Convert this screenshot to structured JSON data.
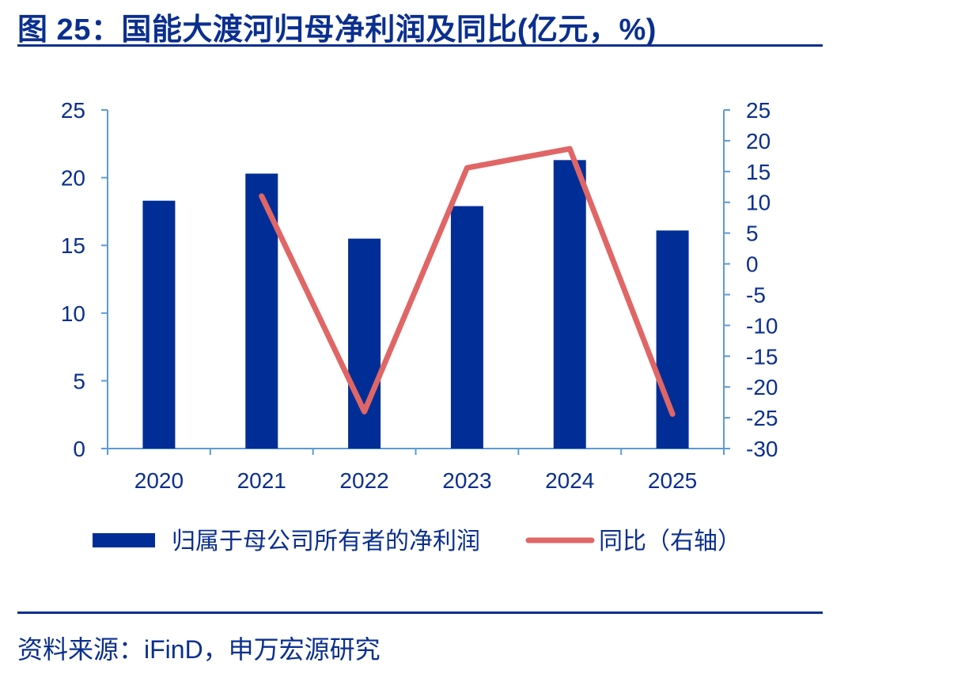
{
  "header": {
    "title": "图 25：国能大渡河归母净利润及同比(亿元，%)"
  },
  "footer": {
    "source": "资料来源：iFinD，申万宏源研究"
  },
  "chart_data": {
    "type": "bar",
    "categories": [
      "2020",
      "2021",
      "2022",
      "2023",
      "2024",
      "2025"
    ],
    "series": [
      {
        "name": "归属于母公司所有者的净利润",
        "type": "bar",
        "axis": "left",
        "color": "#002e96",
        "values": [
          18.3,
          20.3,
          15.5,
          17.9,
          21.3,
          16.1
        ]
      },
      {
        "name": "同比（右轴）",
        "type": "line",
        "axis": "right",
        "color": "#e06666",
        "values": [
          null,
          11.0,
          -24.0,
          15.6,
          18.7,
          -24.4
        ]
      }
    ],
    "y_left": {
      "min": 0,
      "max": 25,
      "ticks": [
        0,
        5,
        10,
        15,
        20,
        25
      ]
    },
    "y_right": {
      "min": -30,
      "max": 25,
      "ticks": [
        -30,
        -25,
        -20,
        -15,
        -10,
        -5,
        0,
        5,
        10,
        15,
        20,
        25
      ]
    },
    "grid": false,
    "legend_position": "bottom",
    "axis_color": "#5b9bd5",
    "text_color": "#0a2f8f"
  }
}
